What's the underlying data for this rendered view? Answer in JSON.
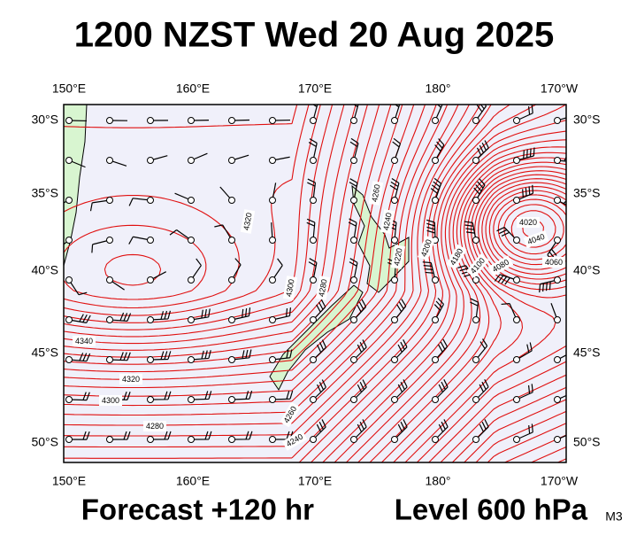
{
  "header": {
    "title": "1200 NZST Wed 20 Aug 2025"
  },
  "map": {
    "lon_labels": [
      "150°E",
      "160°E",
      "170°E",
      "180°",
      "170°W"
    ],
    "lat_labels": [
      "30°S",
      "35°S",
      "40°S",
      "45°S",
      "50°S"
    ],
    "contour_labels": [
      "4340",
      "4320",
      "4300",
      "4280",
      "4320",
      "4300",
      "4280",
      "4260",
      "4240",
      "4220",
      "4200",
      "4180",
      "4100",
      "4080",
      "4020",
      "4040",
      "4060",
      "4260",
      "4240"
    ]
  },
  "footer": {
    "forecast": "Forecast +120 hr",
    "level": "Level 600 hPa",
    "code": "M3"
  }
}
